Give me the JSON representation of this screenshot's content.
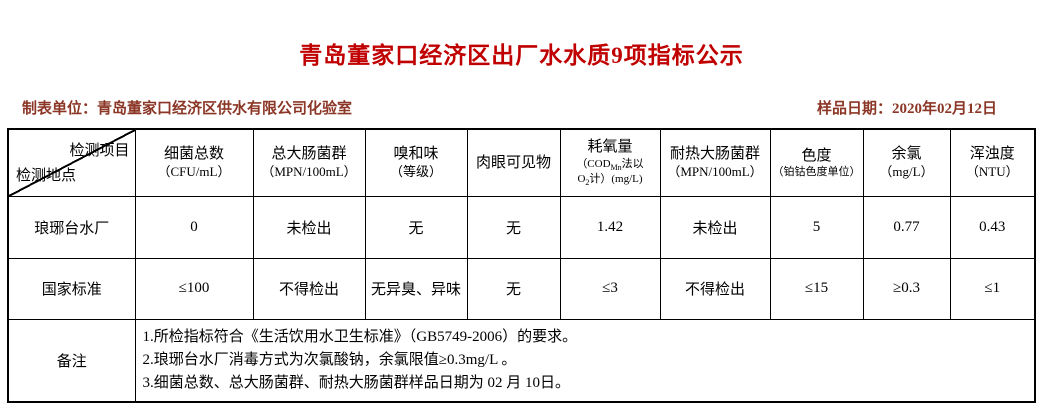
{
  "title": "青岛董家口经济区出厂水水质9项指标公示",
  "meta": {
    "producer": "制表单位：青岛董家口经济区供水有限公司化验室",
    "sample_date": "样品日期：2020年02月12日"
  },
  "colors": {
    "title_red": "#c00000",
    "meta_dark_red": "#8b3626",
    "border_black": "#000000"
  },
  "table": {
    "corner": {
      "top_right": "检测项目",
      "bottom_left": "检测地点"
    },
    "columns": [
      {
        "name": "细菌总数",
        "unit": [
          {
            "t": "（CFU/mL）"
          }
        ]
      },
      {
        "name": "总大肠菌群",
        "unit": [
          {
            "t": "（MPN/100mL）"
          }
        ]
      },
      {
        "name": "嗅和味",
        "unit": [
          {
            "t": "（等级）"
          }
        ]
      },
      {
        "name": "肉眼可见物",
        "unit": []
      },
      {
        "name": "耗氧量",
        "unit": [
          {
            "t": "（COD"
          },
          {
            "t": "Mn",
            "sub": true
          },
          {
            "t": "法以"
          },
          {
            "br": true
          },
          {
            "t": "O"
          },
          {
            "t": "2",
            "sub": true
          },
          {
            "t": "计）(mg/L)"
          }
        ],
        "unit_small": true
      },
      {
        "name": "耐热大肠菌群",
        "unit": [
          {
            "t": "（MPN/100mL）"
          }
        ]
      },
      {
        "name": "色度",
        "unit": [
          {
            "t": "（铂钴色度单位）"
          }
        ],
        "unit_small": true
      },
      {
        "name": "余氯",
        "unit": [
          {
            "t": "（mg/L）"
          }
        ]
      },
      {
        "name": "浑浊度",
        "unit": [
          {
            "t": "（NTU）"
          }
        ]
      }
    ],
    "rows": [
      {
        "label": "琅琊台水厂",
        "values": [
          "0",
          "未检出",
          "无",
          "无",
          "1.42",
          "未检出",
          "5",
          "0.77",
          "0.43"
        ]
      },
      {
        "label": "国家标准",
        "values": [
          "≤100",
          "不得检出",
          "无异臭、异味",
          "无",
          "≤3",
          "不得检出",
          "≤15",
          "≥0.3",
          "≤1"
        ]
      }
    ],
    "remarks": {
      "label": "备注",
      "lines": [
        "1.所检指标符合《生活饮用水卫生标准》（GB5749-2006）的要求。",
        "2.琅琊台水厂消毒方式为次氯酸钠，余氯限值≥0.3mg/L 。",
        "3.细菌总数、总大肠菌群、耐热大肠菌群样品日期为 02 月 10日。"
      ]
    }
  }
}
